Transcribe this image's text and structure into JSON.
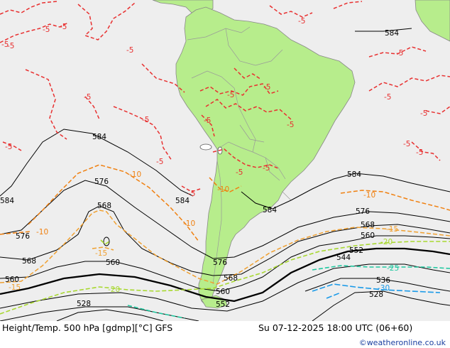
{
  "map": {
    "colors": {
      "ocean": "#eeeeee",
      "land": "#b7ed8c",
      "border": "#999999",
      "height": "#000000",
      "temp_minus5": "#e83030",
      "temp_minus10": "#f08010",
      "temp_minus15": "#f0a030",
      "temp_minus20": "#a8d830",
      "temp_minus25": "#20c8a0",
      "temp_minus30": "#1a9ae8"
    },
    "height_labels": [
      "584",
      "584",
      "584",
      "584",
      "584",
      "584",
      "576",
      "576",
      "576",
      "576",
      "568",
      "568",
      "568",
      "568",
      "560",
      "560",
      "560",
      "560",
      "552",
      "552",
      "544",
      "536",
      "528",
      "528"
    ],
    "temp_labels": [
      "-5",
      "-5",
      "-5",
      "-5",
      "-5",
      "-5",
      "-5",
      "-5",
      "-5",
      "-5",
      "-5",
      "-5",
      "-5",
      "-5",
      "-5",
      "-5",
      "-5",
      "-5",
      "-5",
      "-5",
      "-5",
      "-5",
      "-10",
      "-10",
      "-10",
      "-10",
      "-10",
      "-15",
      "-15",
      "-15",
      "-20",
      "-20",
      "-25",
      "-30"
    ]
  },
  "footer": {
    "title": "Height/Temp. 500 hPa [gdmp][°C] GFS",
    "time": "Su 07-12-2025 18:00 UTC (06+60)",
    "credit": "©weatheronline.co.uk"
  }
}
